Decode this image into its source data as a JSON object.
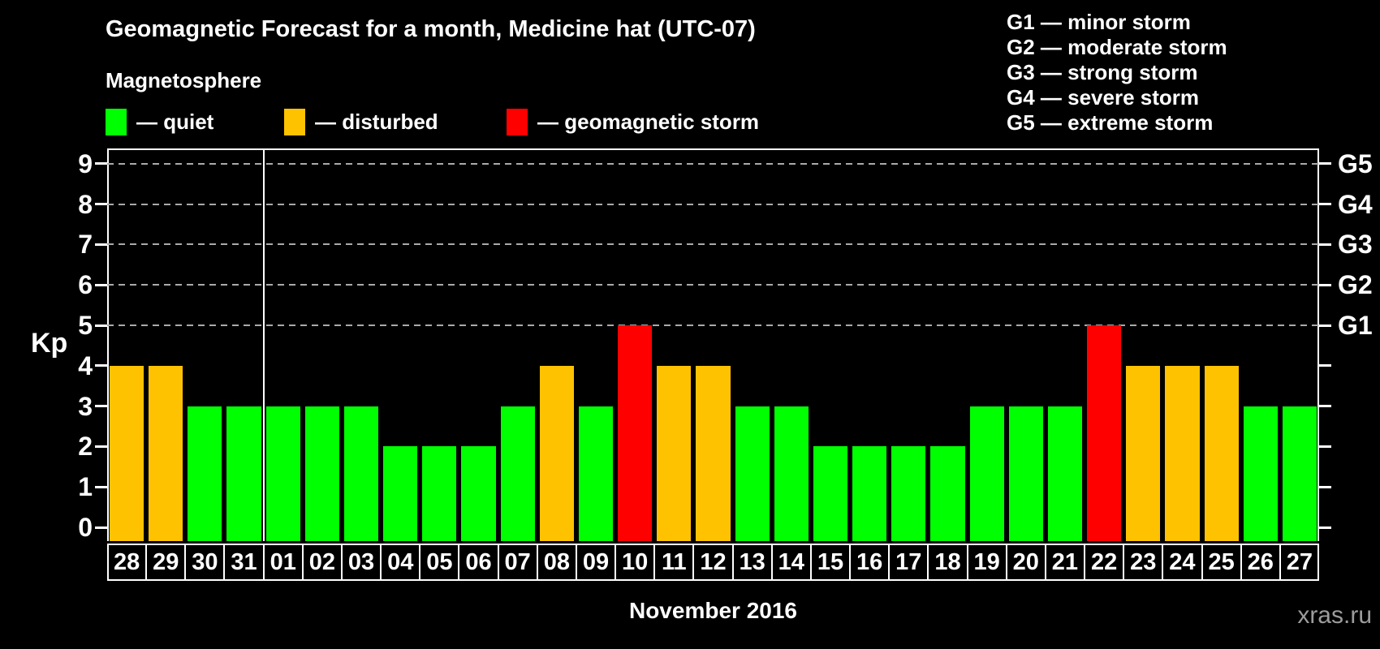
{
  "page": {
    "title": "Geomagnetic Forecast for a month, Medicine hat (UTC-07)",
    "subtitle": "Magnetosphere",
    "month_label": "November 2016",
    "watermark": "xras.ru"
  },
  "legend": {
    "items": [
      {
        "name": "quiet",
        "label": "— quiet",
        "x": 130
      },
      {
        "name": "disturbed",
        "label": "— disturbed",
        "x": 350
      },
      {
        "name": "storm",
        "label": "— geomagnetic storm",
        "x": 624
      }
    ]
  },
  "storm_scale": {
    "items": [
      {
        "code": "G1",
        "label": "G1 — minor storm",
        "kp": 5
      },
      {
        "code": "G2",
        "label": "G2 — moderate storm",
        "kp": 6
      },
      {
        "code": "G3",
        "label": "G3 — strong storm",
        "kp": 7
      },
      {
        "code": "G4",
        "label": "G4 — severe storm",
        "kp": 8
      },
      {
        "code": "G5",
        "label": "G5 — extreme storm",
        "kp": 9
      }
    ]
  },
  "colors": {
    "quiet": "#00ff00",
    "disturbed": "#ffc200",
    "storm": "#ff0000",
    "grid": "#aaaaaa",
    "frame": "#ffffff",
    "watermark": "#9c9c9c",
    "background": "#000000"
  },
  "chart_data": {
    "type": "bar",
    "title": "Geomagnetic Forecast for a month, Medicine hat (UTC-07)",
    "xlabel": "November 2016",
    "ylabel": "Kp",
    "ylim": [
      0,
      9
    ],
    "y_ticks": [
      0,
      1,
      2,
      3,
      4,
      5,
      6,
      7,
      8,
      9
    ],
    "gridlines_at": [
      5,
      6,
      7,
      8,
      9
    ],
    "grid": "horizontal dashed at G-storm levels",
    "legend_position": "top-left",
    "right_axis_labels": [
      "G1",
      "G2",
      "G3",
      "G4",
      "G5"
    ],
    "month_separator_after_index": 3,
    "categories": [
      "28",
      "29",
      "30",
      "31",
      "01",
      "02",
      "03",
      "04",
      "05",
      "06",
      "07",
      "08",
      "09",
      "10",
      "11",
      "12",
      "13",
      "14",
      "15",
      "16",
      "17",
      "18",
      "19",
      "20",
      "21",
      "22",
      "23",
      "24",
      "25",
      "26",
      "27"
    ],
    "values": [
      4,
      4,
      3,
      3,
      3,
      3,
      3,
      2,
      2,
      2,
      3,
      4,
      3,
      5,
      4,
      4,
      3,
      3,
      2,
      2,
      2,
      2,
      3,
      3,
      3,
      5,
      4,
      4,
      4,
      3,
      3
    ],
    "statuses": [
      "disturbed",
      "disturbed",
      "quiet",
      "quiet",
      "quiet",
      "quiet",
      "quiet",
      "quiet",
      "quiet",
      "quiet",
      "quiet",
      "disturbed",
      "quiet",
      "storm",
      "disturbed",
      "disturbed",
      "quiet",
      "quiet",
      "quiet",
      "quiet",
      "quiet",
      "quiet",
      "quiet",
      "quiet",
      "quiet",
      "storm",
      "disturbed",
      "disturbed",
      "disturbed",
      "quiet",
      "quiet"
    ]
  }
}
